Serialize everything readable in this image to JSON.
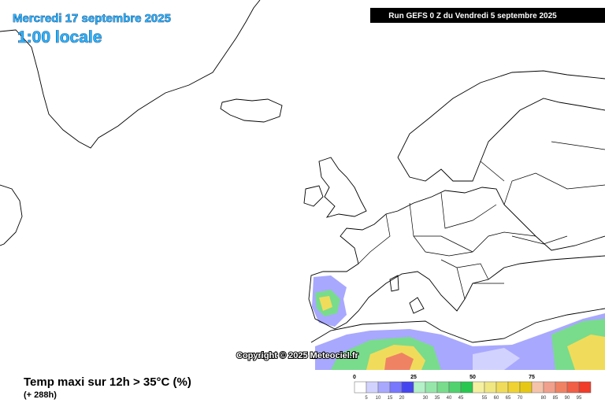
{
  "header": {
    "date": "Mercredi 17 septembre 2025",
    "time": "1:00 locale",
    "run": "Run GEFS 0 Z du Vendredi 5 septembre 2025"
  },
  "map": {
    "copyright": "Copyright © 2025 Meteociel.fr"
  },
  "footer": {
    "title": "Temp maxi sur 12h > 35°C (%)",
    "lead_time": "(+ 288h)"
  },
  "legend": {
    "major_ticks": [
      0,
      25,
      50,
      75
    ],
    "minor_ticks": [
      5,
      10,
      15,
      20,
      30,
      35,
      40,
      45,
      55,
      60,
      65,
      70,
      80,
      85,
      90,
      95
    ],
    "step": 5,
    "max": 100,
    "colors": [
      "#ffffff",
      "#d2d2ff",
      "#a8a8ff",
      "#7878ff",
      "#4646f0",
      "#b4f0c8",
      "#96e6aa",
      "#78dc8c",
      "#50d26e",
      "#28c850",
      "#f5f0a0",
      "#f0e682",
      "#f0dc5a",
      "#f0d232",
      "#e6c814",
      "#f5c3aa",
      "#f0a08c",
      "#f08264",
      "#f05f46",
      "#f03c28"
    ]
  }
}
